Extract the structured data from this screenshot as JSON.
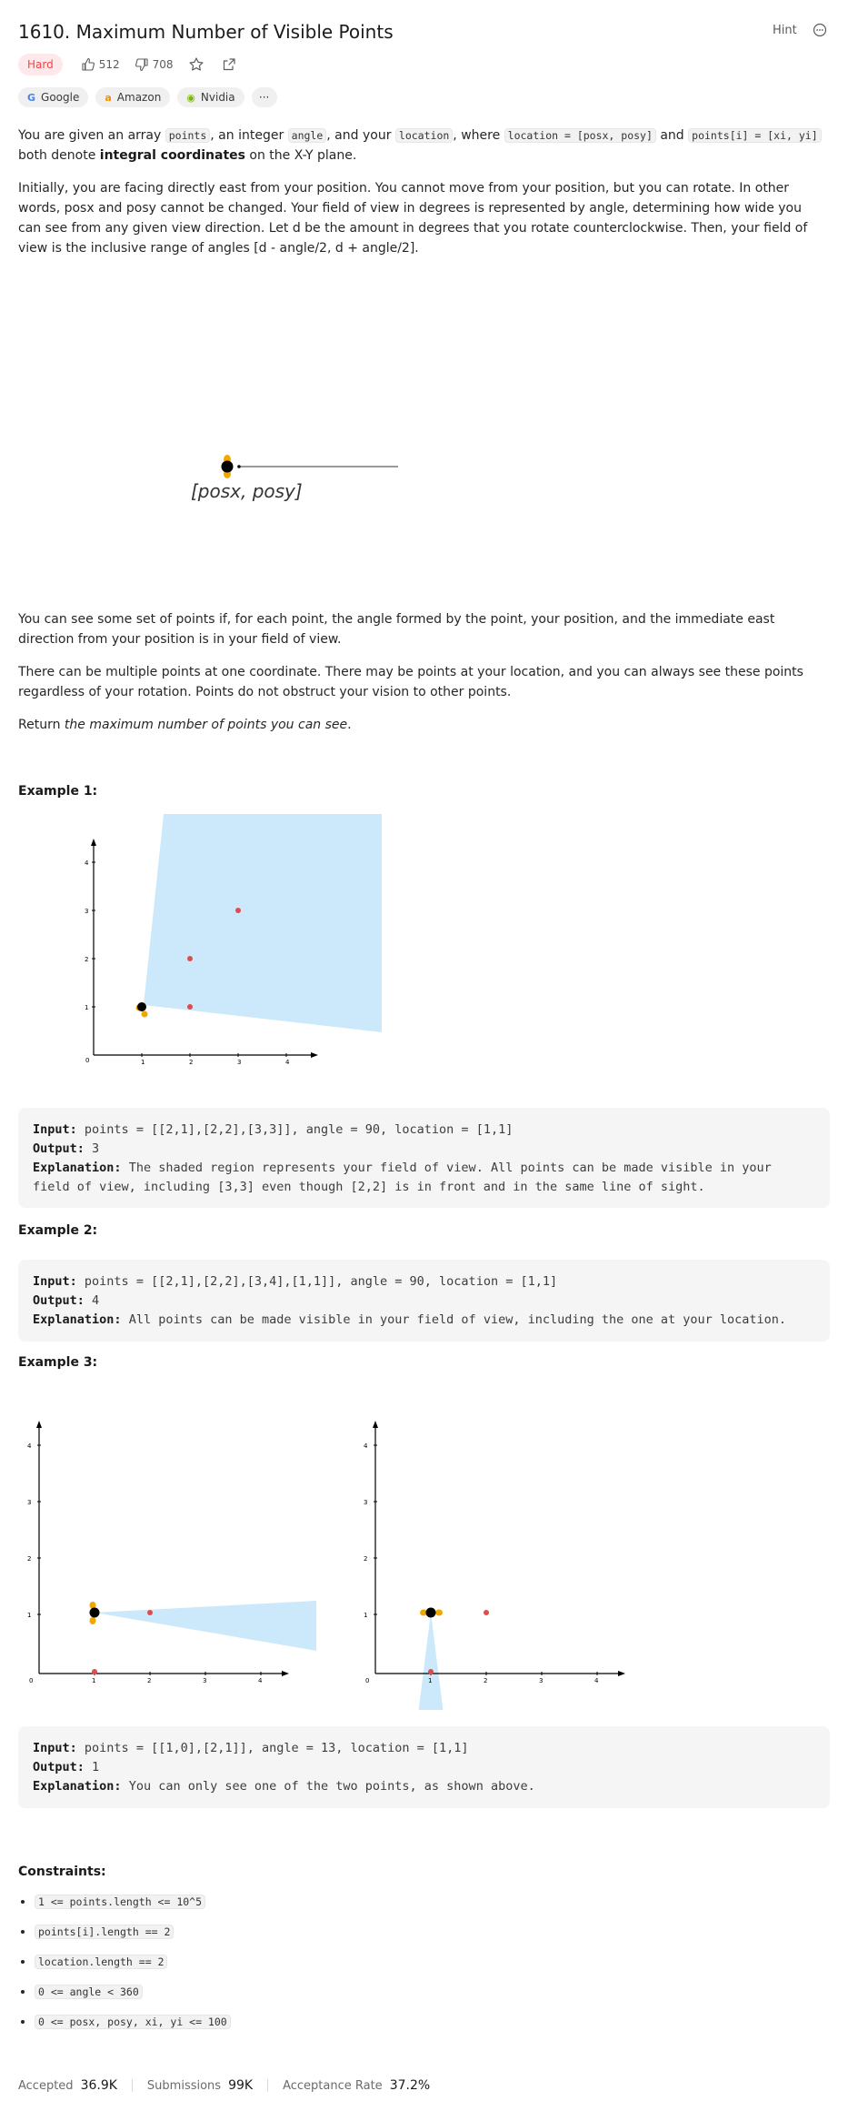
{
  "header": {
    "title": "1610. Maximum Number of Visible Points",
    "hint_label": "Hint",
    "difficulty": "Hard",
    "likes": "512",
    "dislikes": "708"
  },
  "companies": [
    {
      "name": "Google",
      "icon": "google-logo"
    },
    {
      "name": "Amazon",
      "icon": "amazon-logo"
    },
    {
      "name": "Nvidia",
      "icon": "nvidia-logo"
    }
  ],
  "companies_more": "···",
  "description": {
    "p1_a": "You are given an array ",
    "p1_points": "points",
    "p1_b": ", an integer ",
    "p1_angle": "angle",
    "p1_c": ", and your ",
    "p1_location": "location",
    "p1_d": ", where ",
    "p1_loc_def": "location = [posx, posy]",
    "p1_e": " and ",
    "p1_pt_def": "points[i] = [xi, yi]",
    "p1_f": " both denote ",
    "p1_g": "integral coordinates",
    "p1_h": " on the X-Y plane.",
    "p2": "Initially, you are facing directly east from your position. You cannot move from your position, but you can rotate. In other words, posx and posy cannot be changed. Your field of view in degrees is represented by angle, determining how wide you can see from any given view direction. Let d be the amount in degrees that you rotate counterclockwise. Then, your field of view is the inclusive range of angles [d - angle/2, d + angle/2].",
    "figure_label": "[posx, posy]",
    "p3": "You can see some set of points if, for each point, the angle formed by the point, your position, and the immediate east direction from your position is in your field of view.",
    "p4": "There can be multiple points at one coordinate. There may be points at your location, and you can always see these points regardless of your rotation. Points do not obstruct your vision to other points.",
    "p5_a": "Return ",
    "p5_b": "the maximum number of points you can see",
    "p5_c": "."
  },
  "examples": [
    {
      "label": "Example 1:",
      "input": "points = [[2,1],[2,2],[3,3]], angle = 90, location = [1,1]",
      "output": "3",
      "explanation": "The shaded region represents your field of view. All points can be made visible in your field of view, including [3,3] even though [2,2] is in front and in the same line of sight."
    },
    {
      "label": "Example 2:",
      "input": "points = [[2,1],[2,2],[3,4],[1,1]], angle = 90, location = [1,1]",
      "output": "4",
      "explanation": "All points can be made visible in your field of view, including the one at your location."
    },
    {
      "label": "Example 3:",
      "input": "points = [[1,0],[2,1]], angle = 13, location = [1,1]",
      "output": "1",
      "explanation": "You can only see one of the two points, as shown above."
    }
  ],
  "labels": {
    "input": "Input:",
    "output": "Output:",
    "explanation": "Explanation:"
  },
  "plot_ticks": [
    "0",
    "1",
    "2",
    "3",
    "4"
  ],
  "constraints_title": "Constraints:",
  "constraints": [
    "1 <= points.length <= 10^5",
    "points[i].length == 2",
    "location.length == 2",
    "0 <= angle < 360",
    "0 <= posx, posy, xi, yi <= 100"
  ],
  "footer": {
    "accepted_label": "Accepted",
    "accepted": "36.9K",
    "submissions_label": "Submissions",
    "submissions": "99K",
    "rate_label": "Acceptance Rate",
    "rate": "37.2%"
  },
  "colors": {
    "fov": "#cce9fb",
    "point": "#e04b4b",
    "you": "#000000",
    "eye": "#f0a800",
    "hard": "#ef4743"
  }
}
